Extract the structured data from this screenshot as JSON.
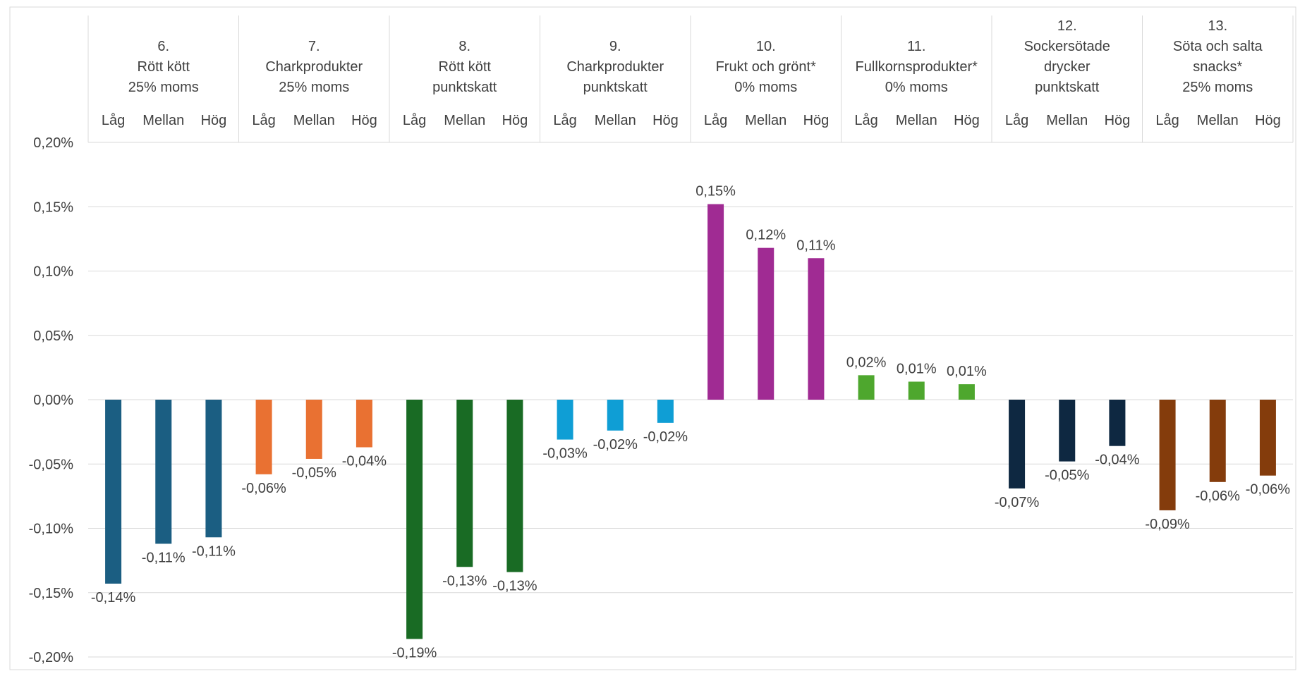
{
  "chart_data": {
    "type": "bar",
    "title": "",
    "xlabel": "",
    "ylabel": "",
    "ylim": [
      -0.2,
      0.2
    ],
    "y_ticks": [
      "0,20%",
      "0,15%",
      "0,10%",
      "0,05%",
      "0,00%",
      "-0,05%",
      "-0,10%",
      "-0,15%",
      "-0,20%"
    ],
    "y_tick_values": [
      0.2,
      0.15,
      0.1,
      0.05,
      0,
      -0.05,
      -0.1,
      -0.15,
      -0.2
    ],
    "grid": true,
    "legend": "none",
    "groups": [
      {
        "number": "6.",
        "line2": "Rött kött",
        "line3": "25% moms",
        "color": "#1B5E82",
        "categories": [
          "Låg",
          "Mellan",
          "Hög"
        ],
        "values": [
          -0.143,
          -0.112,
          -0.107
        ],
        "labels": [
          "-0,14%",
          "-0,11%",
          "-0,11%"
        ]
      },
      {
        "number": "7.",
        "line2": "Charkprodukter",
        "line3": "25% moms",
        "color": "#E97132",
        "categories": [
          "Låg",
          "Mellan",
          "Hög"
        ],
        "values": [
          -0.058,
          -0.046,
          -0.037
        ],
        "labels": [
          "-0,06%",
          "-0,05%",
          "-0,04%"
        ]
      },
      {
        "number": "8.",
        "line2": "Rött kött",
        "line3": "punktskatt",
        "color": "#196B24",
        "categories": [
          "Låg",
          "Mellan",
          "Hög"
        ],
        "values": [
          -0.186,
          -0.13,
          -0.134
        ],
        "labels": [
          "-0,19%",
          "-0,13%",
          "-0,13%"
        ]
      },
      {
        "number": "9.",
        "line2": "Charkprodukter",
        "line3": "punktskatt",
        "color": "#0F9ED5",
        "categories": [
          "Låg",
          "Mellan",
          "Hög"
        ],
        "values": [
          -0.031,
          -0.024,
          -0.018
        ],
        "labels": [
          "-0,03%",
          "-0,02%",
          "-0,02%"
        ]
      },
      {
        "number": "10.",
        "line2": "Frukt och grönt*",
        "line3": "0% moms",
        "color": "#A02B93",
        "categories": [
          "Låg",
          "Mellan",
          "Hög"
        ],
        "values": [
          0.152,
          0.118,
          0.11
        ],
        "labels": [
          "0,15%",
          "0,12%",
          "0,11%"
        ]
      },
      {
        "number": "11.",
        "line2": "Fullkornsprodukter*",
        "line3": "0% moms",
        "color": "#4EA72E",
        "categories": [
          "Låg",
          "Mellan",
          "Hög"
        ],
        "values": [
          0.019,
          0.014,
          0.012
        ],
        "labels": [
          "0,02%",
          "0,01%",
          "0,01%"
        ]
      },
      {
        "number": "12.",
        "line2": "Sockersötade",
        "line3": "drycker",
        "line4": "punktskatt",
        "color": "#0E2841",
        "categories": [
          "Låg",
          "Mellan",
          "Hög"
        ],
        "values": [
          -0.069,
          -0.048,
          -0.036
        ],
        "labels": [
          "-0,07%",
          "-0,05%",
          "-0,04%"
        ]
      },
      {
        "number": "13.",
        "line2": "Söta och salta",
        "line3": "snacks*",
        "line4": "25% moms",
        "color": "#843C0C",
        "categories": [
          "Låg",
          "Mellan",
          "Hög"
        ],
        "values": [
          -0.086,
          -0.064,
          -0.059
        ],
        "labels": [
          "-0,09%",
          "-0,06%",
          "-0,06%"
        ]
      }
    ]
  }
}
